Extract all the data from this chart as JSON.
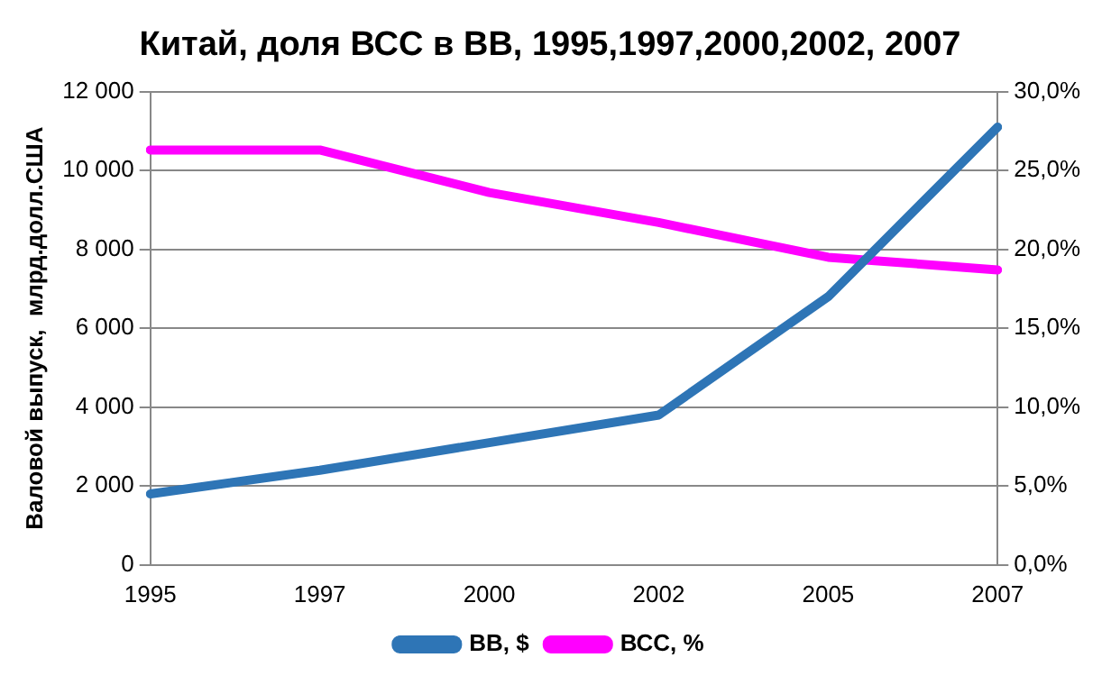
{
  "chart_data": {
    "type": "line",
    "title": "Китай, доля ВСС в ВВ, 1995,1997,2000,2002, 2007",
    "ylabel": "Валовой выпуск,  млрд.долл.США",
    "categories": [
      "1995",
      "1997",
      "2000",
      "2002",
      "2005",
      "2007"
    ],
    "series": [
      {
        "name": "ВВ, $",
        "color": "#2e75b6",
        "values": [
          1800,
          2400,
          3100,
          3800,
          6800,
          11100
        ]
      },
      {
        "name": "ВСС, %",
        "color": "#ff00ff",
        "values": [
          26.3,
          26.3,
          23.6,
          21.7,
          19.5,
          18.7
        ],
        "axis": "y2"
      }
    ],
    "ylim": [
      0,
      12000
    ],
    "yticks": [
      {
        "value": 0,
        "label": "0"
      },
      {
        "value": 2000,
        "label": "2 000"
      },
      {
        "value": 4000,
        "label": "4 000"
      },
      {
        "value": 6000,
        "label": "6 000"
      },
      {
        "value": 8000,
        "label": "8 000"
      },
      {
        "value": 10000,
        "label": "10 000"
      },
      {
        "value": 12000,
        "label": "12 000"
      }
    ],
    "y2lim": [
      0,
      30
    ],
    "y2ticks": [
      {
        "value": 0,
        "label": "0,0%"
      },
      {
        "value": 5,
        "label": "5,0%"
      },
      {
        "value": 10,
        "label": "10,0%"
      },
      {
        "value": 15,
        "label": "15,0%"
      },
      {
        "value": 20,
        "label": "20,0%"
      },
      {
        "value": 25,
        "label": "25,0%"
      },
      {
        "value": 30,
        "label": "30,0%"
      }
    ],
    "grid": "y",
    "legend": "bottom",
    "marker": "none",
    "line_style": "solid"
  }
}
